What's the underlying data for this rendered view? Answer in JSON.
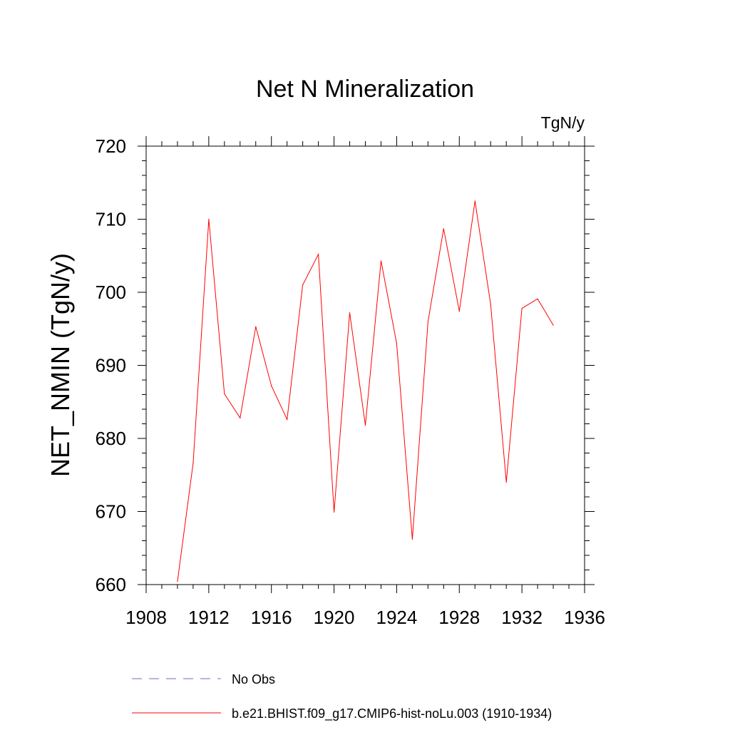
{
  "chart_data": {
    "type": "line",
    "title": "Net N Mineralization",
    "units_label": "TgN/y",
    "xlabel": "",
    "ylabel": "NET_NMIN  (TgN/y)",
    "xlim": [
      1908,
      1936
    ],
    "ylim": [
      660,
      720
    ],
    "x_ticks": [
      1908,
      1912,
      1916,
      1920,
      1924,
      1928,
      1932,
      1936
    ],
    "y_ticks": [
      660,
      670,
      680,
      690,
      700,
      710,
      720
    ],
    "grid": false,
    "legend_position": "bottom",
    "series": [
      {
        "name": "No Obs",
        "color": "#6b6bd6",
        "dashed": true,
        "x": [],
        "values": []
      },
      {
        "name": "b.e21.BHIST.f09_g17.CMIP6-hist-noLu.003 (1910-1934)",
        "color": "#ff0000",
        "dashed": false,
        "x": [
          1910,
          1911,
          1912,
          1913,
          1914,
          1915,
          1916,
          1917,
          1918,
          1919,
          1920,
          1921,
          1922,
          1923,
          1924,
          1925,
          1926,
          1927,
          1928,
          1929,
          1930,
          1931,
          1932,
          1933,
          1934
        ],
        "values": [
          660.4,
          676.6,
          710.0,
          686.1,
          682.8,
          695.3,
          687.2,
          682.6,
          701.0,
          705.2,
          669.9,
          697.2,
          681.8,
          704.3,
          693.0,
          666.2,
          696.0,
          708.7,
          697.4,
          712.5,
          698.4,
          674.0,
          697.8,
          699.1,
          695.5
        ]
      }
    ]
  }
}
